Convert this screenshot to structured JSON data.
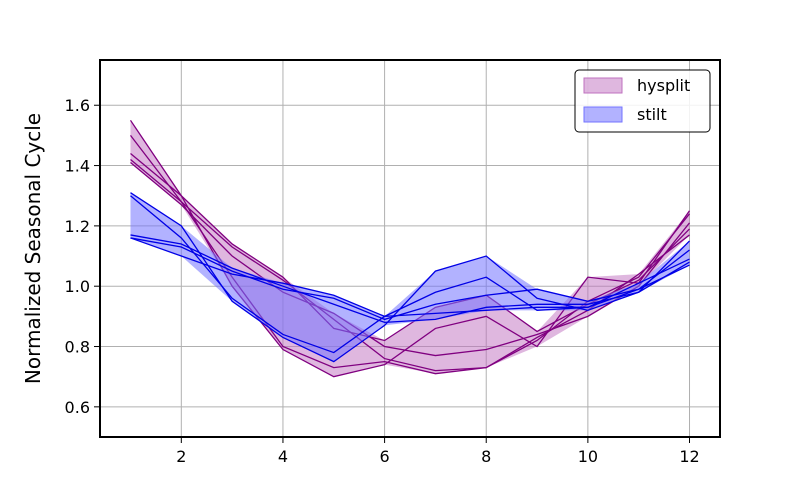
{
  "chart_data": {
    "type": "area",
    "title": "",
    "xlabel": "",
    "ylabel": "Normalized Seasonal Cycle",
    "xlim": [
      0.4,
      12.6
    ],
    "ylim": [
      0.5,
      1.75
    ],
    "xticks": [
      2,
      4,
      6,
      8,
      10,
      12
    ],
    "yticks": [
      0.6,
      0.8,
      1.0,
      1.2,
      1.4,
      1.6
    ],
    "xtick_labels": [
      "2",
      "4",
      "6",
      "8",
      "10",
      "12"
    ],
    "ytick_labels": [
      "0.6",
      "0.8",
      "1.0",
      "1.2",
      "1.4",
      "1.6"
    ],
    "grid": true,
    "legend_position": "top-right",
    "x": [
      1,
      2,
      3,
      4,
      5,
      6,
      7,
      8,
      9,
      10,
      11,
      12
    ],
    "series": [
      {
        "name": "hysplit",
        "fill_color": "#bf70bf",
        "fill_opacity": 0.5,
        "line_color": "#800080",
        "lines": [
          [
            1.55,
            1.3,
            1.0,
            0.79,
            0.7,
            0.74,
            0.86,
            0.9,
            0.8,
            1.03,
            1.01,
            1.25
          ],
          [
            1.44,
            1.3,
            1.14,
            1.03,
            0.86,
            0.82,
            0.93,
            0.97,
            0.85,
            0.94,
            1.02,
            1.19
          ],
          [
            1.42,
            1.28,
            1.13,
            1.02,
            0.89,
            0.76,
            0.72,
            0.73,
            0.83,
            0.92,
            1.04,
            1.17
          ],
          [
            1.41,
            1.27,
            1.1,
            0.98,
            0.91,
            0.8,
            0.77,
            0.79,
            0.84,
            0.9,
            1.0,
            1.21
          ],
          [
            1.5,
            1.28,
            1.03,
            0.8,
            0.73,
            0.75,
            0.71,
            0.73,
            0.82,
            0.95,
            1.03,
            1.24
          ]
        ]
      },
      {
        "name": "stilt",
        "fill_color": "#7373ff",
        "fill_opacity": 0.55,
        "line_color": "#0000e6",
        "lines": [
          [
            1.31,
            1.2,
            0.95,
            0.83,
            0.75,
            0.87,
            1.05,
            1.1,
            0.96,
            0.92,
            0.98,
            1.15
          ],
          [
            1.3,
            1.16,
            0.96,
            0.84,
            0.78,
            0.9,
            0.98,
            1.03,
            0.92,
            0.93,
            0.99,
            1.12
          ],
          [
            1.17,
            1.14,
            1.06,
            1.0,
            0.94,
            0.88,
            0.89,
            0.93,
            0.94,
            0.94,
            0.98,
            1.08
          ],
          [
            1.16,
            1.1,
            1.04,
            1.01,
            0.97,
            0.9,
            0.91,
            0.92,
            0.93,
            0.93,
            1.01,
            1.09
          ],
          [
            1.16,
            1.13,
            1.05,
            0.99,
            0.96,
            0.89,
            0.94,
            0.97,
            0.99,
            0.95,
            0.99,
            1.07
          ]
        ]
      }
    ]
  }
}
